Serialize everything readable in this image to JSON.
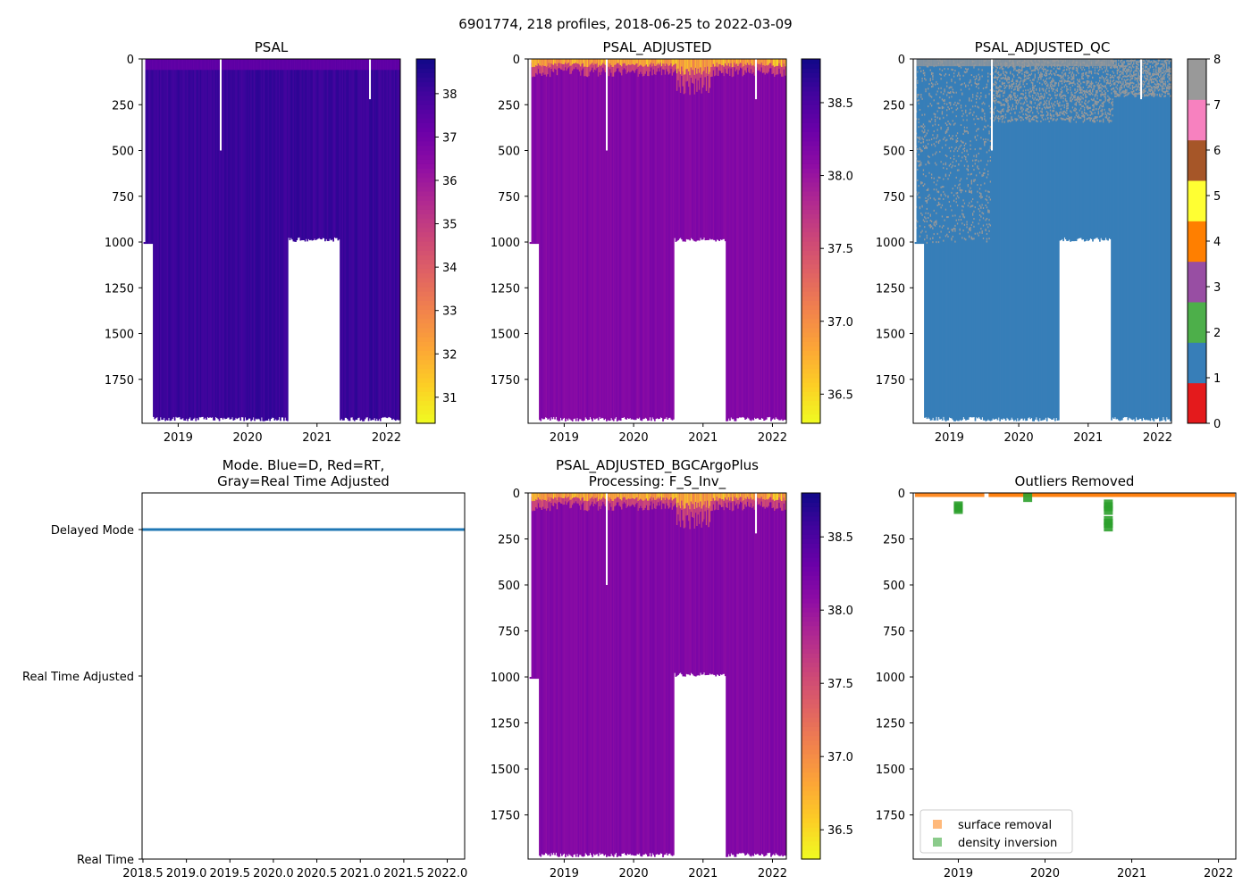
{
  "suptitle": "6901774, 218 profiles, 2018-06-25 to 2022-03-09",
  "colors": {
    "plasma": [
      "#0d0887",
      "#41049d",
      "#6a00a8",
      "#8f0da4",
      "#b12a90",
      "#cc4778",
      "#e16462",
      "#f2844b",
      "#fca636",
      "#fcce25",
      "#f0f921"
    ],
    "qc": [
      "#e41a1c",
      "#377eb8",
      "#4daf4a",
      "#984ea3",
      "#ff7f00",
      "#ffff33",
      "#a65628",
      "#f781bf",
      "#999999"
    ],
    "mode_line": "#1f77b4",
    "surface_removal": "#ff7f0e",
    "density_inversion": "#2ca02c"
  },
  "chart_data": [
    {
      "id": "psal",
      "type": "heatmap",
      "title": "PSAL",
      "x_ticks": [
        "2019",
        "2020",
        "2021",
        "2022"
      ],
      "x_tick_values": [
        2019,
        2020,
        2021,
        2022
      ],
      "xlim": [
        2018.48,
        2022.2
      ],
      "ylim": [
        1990,
        0
      ],
      "y_ticks": [
        0,
        250,
        500,
        750,
        1000,
        1250,
        1500,
        1750
      ],
      "colorbar": {
        "cmap": "plasma",
        "range": [
          30.4,
          38.8
        ],
        "ticks": [
          31,
          32,
          33,
          34,
          35,
          36,
          37,
          38
        ]
      }
    },
    {
      "id": "psal_adj",
      "type": "heatmap",
      "title": "PSAL_ADJUSTED",
      "x_ticks": [
        "2019",
        "2020",
        "2021",
        "2022"
      ],
      "x_tick_values": [
        2019,
        2020,
        2021,
        2022
      ],
      "xlim": [
        2018.48,
        2022.2
      ],
      "ylim": [
        1990,
        0
      ],
      "y_ticks": [
        0,
        250,
        500,
        750,
        1000,
        1250,
        1500,
        1750
      ],
      "colorbar": {
        "cmap": "plasma",
        "range": [
          36.3,
          38.8
        ],
        "ticks": [
          36.5,
          37.0,
          37.5,
          38.0,
          38.5
        ],
        "tick_labels": [
          "36.5",
          "37.0",
          "37.5",
          "38.0",
          "38.5"
        ]
      }
    },
    {
      "id": "psal_qc",
      "type": "heatmap",
      "title": "PSAL_ADJUSTED_QC",
      "x_ticks": [
        "2019",
        "2020",
        "2021",
        "2022"
      ],
      "x_tick_values": [
        2019,
        2020,
        2021,
        2022
      ],
      "xlim": [
        2018.48,
        2022.2
      ],
      "ylim": [
        1990,
        0
      ],
      "y_ticks": [
        0,
        250,
        500,
        750,
        1000,
        1250,
        1500,
        1750
      ],
      "colorbar": {
        "cmap": "qc",
        "range": [
          0,
          8
        ],
        "ticks": [
          0,
          1,
          2,
          3,
          4,
          5,
          6,
          7,
          8
        ]
      }
    },
    {
      "id": "mode",
      "type": "line",
      "title_lines": [
        "Mode. Blue=D, Red=RT,",
        "Gray=Real Time Adjusted"
      ],
      "x_ticks": [
        "2018.5",
        "2019.0",
        "2019.5",
        "2020.0",
        "2020.5",
        "2021.0",
        "2021.5",
        "2022.0"
      ],
      "x_tick_values": [
        2018.5,
        2019.0,
        2019.5,
        2020.0,
        2020.5,
        2021.0,
        2021.5,
        2022.0
      ],
      "xlim": [
        2018.49,
        2022.2
      ],
      "y_categories": [
        "Delayed Mode",
        "Real Time Adjusted",
        "Real Time"
      ],
      "y_values": [
        0.9,
        0.5,
        0.0
      ],
      "series": [
        {
          "name": "mode",
          "x": [
            2018.49,
            2022.2
          ],
          "y": [
            0.9,
            0.9
          ]
        }
      ]
    },
    {
      "id": "bgc",
      "type": "heatmap",
      "title_lines": [
        "PSAL_ADJUSTED_BGCArgoPlus",
        "Processing: F_S_Inv_"
      ],
      "x_ticks": [
        "2019",
        "2020",
        "2021",
        "2022"
      ],
      "x_tick_values": [
        2019,
        2020,
        2021,
        2022
      ],
      "xlim": [
        2018.48,
        2022.2
      ],
      "ylim": [
        1990,
        0
      ],
      "y_ticks": [
        0,
        250,
        500,
        750,
        1000,
        1250,
        1500,
        1750
      ],
      "colorbar": {
        "cmap": "plasma",
        "range": [
          36.3,
          38.8
        ],
        "ticks": [
          36.5,
          37.0,
          37.5,
          38.0,
          38.5
        ],
        "tick_labels": [
          "36.5",
          "37.0",
          "37.5",
          "38.0",
          "38.5"
        ]
      }
    },
    {
      "id": "outliers",
      "type": "scatter",
      "title": "Outliers Removed",
      "x_ticks": [
        "2019",
        "2020",
        "2021",
        "2022"
      ],
      "x_tick_values": [
        2019,
        2020,
        2021,
        2022
      ],
      "xlim": [
        2018.48,
        2022.2
      ],
      "ylim": [
        1990,
        0
      ],
      "y_ticks": [
        0,
        250,
        500,
        750,
        1000,
        1250,
        1500,
        1750
      ],
      "legend": {
        "position": "lower-left",
        "entries": [
          "surface removal",
          "density inversion"
        ]
      },
      "series": [
        {
          "name": "surface removal",
          "x": [
            2018.5,
            2019.3,
            2019.35,
            2020.2,
            2021.0,
            2021.7,
            2022.19
          ],
          "y": [
            10,
            10,
            10,
            10,
            10,
            10,
            10
          ]
        },
        {
          "name": "density inversion",
          "x": [
            2019.0,
            2019.0,
            2019.0,
            2019.8,
            2020.73,
            2020.73,
            2020.73,
            2020.73,
            2020.73,
            2020.73
          ],
          "y": [
            70,
            80,
            90,
            25,
            60,
            75,
            95,
            150,
            165,
            185
          ]
        }
      ]
    }
  ]
}
